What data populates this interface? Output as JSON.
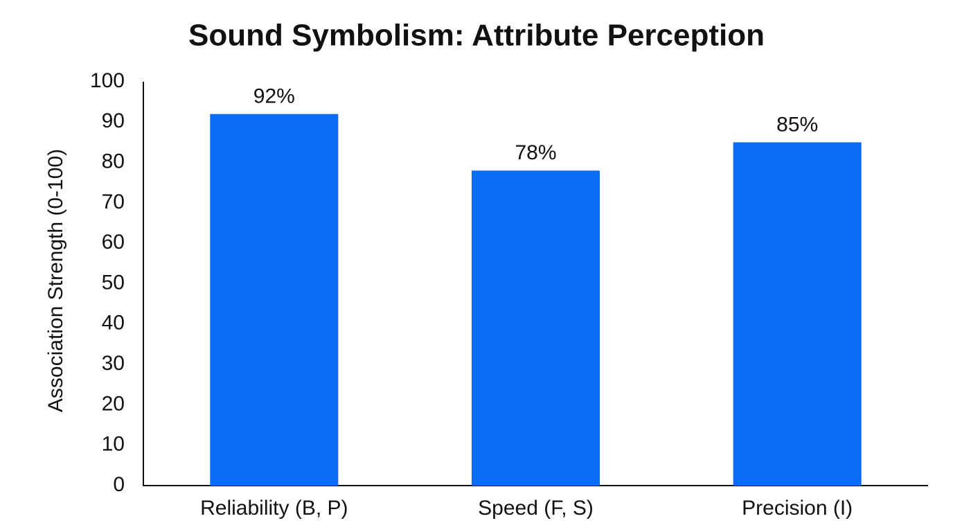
{
  "chart_data": {
    "type": "bar",
    "title": "Sound Symbolism: Attribute Perception",
    "y_label": "Association Strength (0-100)",
    "categories": [
      "Reliability (B, P)",
      "Speed (F, S)",
      "Precision (I)"
    ],
    "values": [
      92,
      78,
      85
    ],
    "value_labels": [
      "92%",
      "78%",
      "85%"
    ],
    "color": "#0a6cf5",
    "ylim": [
      0,
      100
    ],
    "yticks": [
      0,
      10,
      20,
      30,
      40,
      50,
      60,
      70,
      80,
      90,
      100
    ],
    "grid": false
  }
}
